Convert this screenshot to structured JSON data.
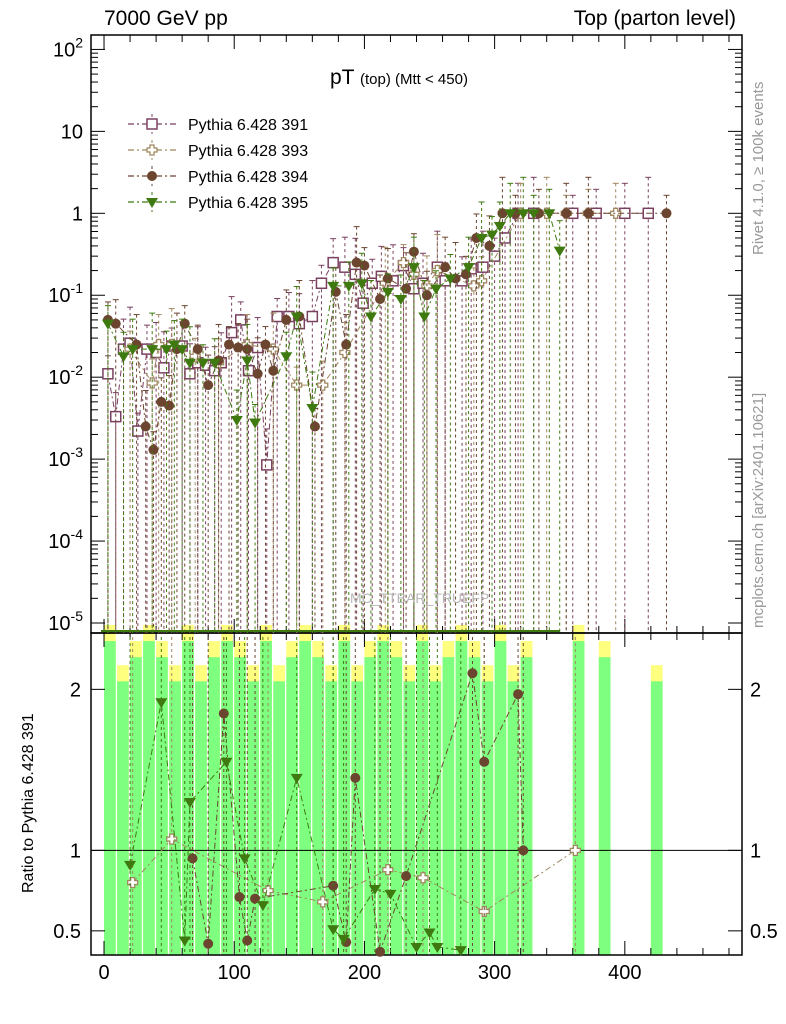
{
  "header": {
    "left": "7000 GeV pp",
    "right": "Top (parton level)"
  },
  "side_labels": {
    "rivet": "Rivet 4.1.0, ≥ 100k events",
    "mcplots": "mcplots.cern.ch [arXiv:2401.10621]"
  },
  "watermark": "MC_TTBAR_TRUEFP",
  "chart_data": {
    "type": "scatter",
    "title_main": "pT",
    "title_sub": "(top) (Mtt < 450)",
    "xlim": [
      -10,
      490
    ],
    "ylim": [
      1e-05,
      150
    ],
    "yscale": "log",
    "xticks": [
      "0",
      "100",
      "200",
      "300",
      "400"
    ],
    "yticks": [
      "10^-5",
      "10^-4",
      "10^-3",
      "10^-2",
      "10^-1",
      "1",
      "10",
      "10^2"
    ],
    "ratio": {
      "ylabel": "Ratio to Pythia 6.428 391",
      "ylim": [
        0.35,
        2.35
      ],
      "yticks": [
        "0.5",
        "1",
        "2"
      ],
      "band_colors": {
        "stat": "#7fff7f",
        "total": "#ffff7f"
      },
      "bands_x": [
        0,
        10,
        20,
        30,
        40,
        50,
        60,
        70,
        80,
        90,
        100,
        110,
        120,
        130,
        140,
        150,
        160,
        170,
        180,
        190,
        200,
        210,
        220,
        230,
        240,
        250,
        260,
        270,
        280,
        290,
        300,
        310,
        320,
        360,
        380,
        420
      ]
    },
    "series": [
      {
        "name": "Pythia 6.428 391",
        "marker": "open-square",
        "color": "#7a4060",
        "x": [
          3,
          9,
          15,
          20,
          26,
          33,
          40,
          46,
          52,
          60,
          66,
          72,
          78,
          85,
          90,
          98,
          105,
          111,
          118,
          125,
          133,
          142,
          150,
          160,
          167,
          176,
          185,
          193,
          199,
          206,
          213,
          222,
          230,
          238,
          245,
          256,
          262,
          275,
          282,
          291,
          300,
          308,
          318,
          330,
          360,
          378,
          400,
          418
        ],
        "y": [
          0.011,
          0.0033,
          0.022,
          0.026,
          0.0022,
          0.022,
          0.02,
          0.013,
          0.024,
          0.024,
          0.011,
          0.015,
          0.014,
          0.012,
          0.015,
          0.035,
          0.05,
          0.012,
          0.023,
          0.00085,
          0.055,
          0.055,
          0.045,
          0.055,
          0.14,
          0.25,
          0.22,
          0.18,
          0.08,
          0.14,
          0.17,
          0.15,
          0.23,
          0.12,
          0.14,
          0.22,
          0.15,
          0.15,
          0.21,
          0.22,
          0.3,
          0.5,
          1.0,
          1.0,
          1.0,
          1.0,
          1.0,
          1.0
        ]
      },
      {
        "name": "Pythia 6.428 393",
        "marker": "open-cross",
        "color": "#a08860",
        "x": [
          20,
          37,
          42,
          52,
          70,
          88,
          110,
          130,
          148,
          168,
          185,
          216,
          230,
          238,
          248,
          256,
          284,
          290,
          320,
          340,
          355,
          372,
          393
        ],
        "y": [
          0.022,
          0.0085,
          0.025,
          0.025,
          0.018,
          0.015,
          0.025,
          0.022,
          0.008,
          0.008,
          0.02,
          0.14,
          0.25,
          0.18,
          0.13,
          0.2,
          0.13,
          0.15,
          1.0,
          1.0,
          1.0,
          1.0,
          1.0
        ]
      },
      {
        "name": "Pythia 6.428 394",
        "marker": "filled-circle",
        "color": "#6b4530",
        "x": [
          3,
          9,
          25,
          32,
          38,
          44,
          50,
          56,
          62,
          72,
          80,
          88,
          96,
          103,
          110,
          118,
          124,
          130,
          140,
          150,
          162,
          178,
          186,
          194,
          200,
          212,
          218,
          232,
          238,
          248,
          262,
          270,
          278,
          286,
          296,
          306,
          316,
          334,
          355,
          372,
          432
        ],
        "y": [
          0.05,
          0.045,
          0.025,
          0.0025,
          0.0013,
          0.005,
          0.0045,
          0.022,
          0.045,
          0.022,
          0.008,
          0.016,
          0.025,
          0.023,
          0.022,
          0.011,
          0.025,
          0.012,
          0.05,
          0.055,
          0.0025,
          0.11,
          0.025,
          0.25,
          0.23,
          0.09,
          0.16,
          0.12,
          0.34,
          0.1,
          0.22,
          0.16,
          0.18,
          0.5,
          0.4,
          1.0,
          1.0,
          1.0,
          1.0,
          1.0,
          1.0
        ]
      },
      {
        "name": "Pythia 6.428 395",
        "marker": "filled-triangle",
        "color": "#3f7a10",
        "x": [
          3,
          15,
          22,
          37,
          48,
          54,
          60,
          66,
          76,
          85,
          102,
          110,
          116,
          140,
          148,
          160,
          176,
          188,
          198,
          205,
          218,
          228,
          238,
          246,
          255,
          266,
          280,
          290,
          298,
          304,
          312,
          322,
          330,
          342,
          350
        ],
        "y": [
          0.045,
          0.018,
          0.022,
          0.022,
          0.022,
          0.025,
          0.022,
          0.015,
          0.015,
          0.015,
          0.003,
          0.016,
          0.0028,
          0.018,
          0.055,
          0.0042,
          0.13,
          0.13,
          0.14,
          0.055,
          0.11,
          0.09,
          0.22,
          0.055,
          0.12,
          0.16,
          0.22,
          0.5,
          0.55,
          0.7,
          1.0,
          1.0,
          1.0,
          1.0,
          0.35
        ]
      }
    ],
    "ratios": [
      {
        "name": "Pythia 6.428 393",
        "x": [
          22,
          52,
          126,
          168,
          218,
          245,
          292,
          362
        ],
        "y": [
          0.8,
          1.07,
          0.75,
          0.68,
          0.88,
          0.83,
          0.62,
          1.0
        ]
      },
      {
        "name": "Pythia 6.428 394",
        "x": [
          68,
          80,
          92,
          104,
          110,
          116,
          176,
          186,
          193,
          212,
          232,
          283,
          292,
          318,
          322
        ],
        "y": [
          0.95,
          0.42,
          1.85,
          0.71,
          0.44,
          0.7,
          0.78,
          0.43,
          1.45,
          0.37,
          0.84,
          2.1,
          1.55,
          1.97,
          1.0
        ]
      },
      {
        "name": "Pythia 6.428 395",
        "x": [
          20,
          44,
          62,
          66,
          94,
          108,
          122,
          148,
          176,
          184,
          208,
          220,
          240,
          250,
          256,
          274
        ],
        "y": [
          0.91,
          1.92,
          0.44,
          1.3,
          1.55,
          0.95,
          0.66,
          1.45,
          0.51,
          0.45,
          0.76,
          0.73,
          0.4,
          0.49,
          0.4,
          0.38
        ]
      }
    ]
  }
}
